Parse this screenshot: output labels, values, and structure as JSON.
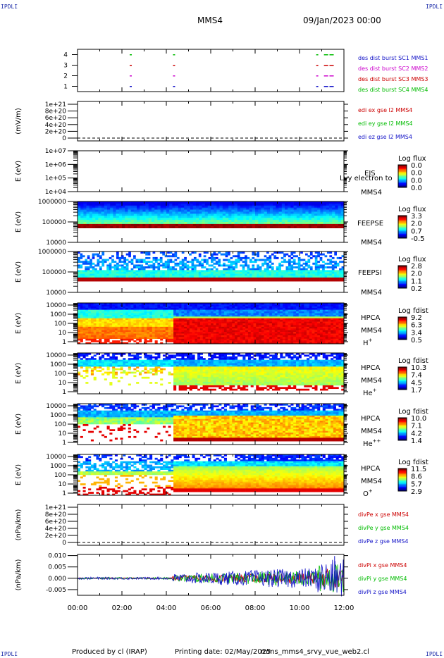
{
  "header": {
    "corner_label": "IPDLI",
    "spacecraft": "MMS4",
    "date": "09/Jan/2023 00:00"
  },
  "footer": {
    "produced": "Produced by cl (IRAP)",
    "printing": "Printing date: 02/May/2025",
    "script": "mms_mms4_srvy_vue_web2.cl"
  },
  "colors": {
    "blue": "#1414c8",
    "magenta": "#cc00cc",
    "red": "#cc0000",
    "green": "#00bb00",
    "black": "#000000"
  },
  "chart_data": [
    {
      "type": "scatter",
      "panel": "burst",
      "ylabel": "",
      "yticks": [
        "1",
        "2",
        "3",
        "4"
      ],
      "ylim": [
        0.5,
        4.5
      ],
      "xlim": [
        "00:00",
        "12:00"
      ],
      "series": [
        {
          "name": "des dist burst SC1 MMS1",
          "color": "#1414c8",
          "y": 1
        },
        {
          "name": "des dist burst SC2 MMS2",
          "color": "#cc00cc",
          "y": 2
        },
        {
          "name": "des dist burst SC3 MMS3",
          "color": "#cc0000",
          "y": 3
        },
        {
          "name": "des dist burst SC4 MMS4",
          "color": "#00bb00",
          "y": 4
        }
      ],
      "bursts_hours": [
        2.35,
        4.3,
        10.75,
        11.1,
        11.35
      ]
    },
    {
      "type": "line",
      "panel": "edi",
      "ylabel": "(mV/m)",
      "yticks": [
        "1e+21",
        "8e+20",
        "6e+20",
        "4e+20",
        "2e+20",
        "0"
      ],
      "series": [
        {
          "name": "edi ex gse l2 MMS4",
          "color": "#cc0000"
        },
        {
          "name": "edi ey gse l2 MMS4",
          "color": "#00bb00"
        },
        {
          "name": "edi ez gse l2 MMS4",
          "color": "#1414c8"
        }
      ]
    },
    {
      "type": "heatmap",
      "panel": "eis",
      "ylabel": "E (eV)",
      "yticks": [
        "1e+07",
        "1e+06",
        "1e+05",
        "1e+04"
      ],
      "right_labels": [
        "EIS",
        "MMS4"
      ],
      "overlay": "Lvy electron to",
      "colorbar": {
        "title": "Log flux",
        "ticks": [
          "0.0",
          "0.0",
          "0.0",
          "0.0"
        ]
      }
    },
    {
      "type": "heatmap",
      "panel": "feeps_e",
      "ylabel": "E (eV)",
      "yticks": [
        "1000000",
        "100000",
        "10000"
      ],
      "right_labels": [
        "FEEPSE",
        "MMS4"
      ],
      "colorbar": {
        "title": "Log flux",
        "ticks": [
          "3.3",
          "2.0",
          "0.7",
          "-0.5"
        ]
      }
    },
    {
      "type": "heatmap",
      "panel": "feeps_i",
      "ylabel": "E (eV)",
      "yticks": [
        "1000000",
        "100000",
        "10000"
      ],
      "right_labels": [
        "FEEPSI",
        "MMS4"
      ],
      "colorbar": {
        "title": "Log flux",
        "ticks": [
          "2.8",
          "2.0",
          "1.1",
          "0.2"
        ]
      }
    },
    {
      "type": "heatmap",
      "panel": "hpca_h",
      "ylabel": "E (eV)",
      "yticks": [
        "10000",
        "1000",
        "100",
        "10",
        "1"
      ],
      "right_labels": [
        "HPCA",
        "MMS4"
      ],
      "species": "H",
      "species_sup": "+",
      "colorbar": {
        "title": "Log fdist",
        "ticks": [
          "9.2",
          "6.3",
          "3.4",
          "0.5"
        ]
      }
    },
    {
      "type": "heatmap",
      "panel": "hpca_he",
      "ylabel": "E (eV)",
      "yticks": [
        "10000",
        "1000",
        "100",
        "10",
        "1"
      ],
      "right_labels": [
        "HPCA",
        "MMS4"
      ],
      "species": "He",
      "species_sup": "+",
      "colorbar": {
        "title": "Log fdist",
        "ticks": [
          "10.3",
          "7.4",
          "4.5",
          "1.7"
        ]
      }
    },
    {
      "type": "heatmap",
      "panel": "hpca_he2",
      "ylabel": "E (eV)",
      "yticks": [
        "10000",
        "1000",
        "100",
        "10",
        "1"
      ],
      "right_labels": [
        "HPCA",
        "MMS4"
      ],
      "species": "He",
      "species_sup": "++",
      "colorbar": {
        "title": "Log fdist",
        "ticks": [
          "10.0",
          "7.1",
          "4.2",
          "1.4"
        ]
      }
    },
    {
      "type": "heatmap",
      "panel": "hpca_o",
      "ylabel": "E (eV)",
      "yticks": [
        "10000",
        "1000",
        "100",
        "10",
        "1"
      ],
      "right_labels": [
        "HPCA",
        "MMS4"
      ],
      "species": "O",
      "species_sup": "+",
      "colorbar": {
        "title": "Log fdist",
        "ticks": [
          "11.5",
          "8.6",
          "5.7",
          "2.9"
        ]
      }
    },
    {
      "type": "line",
      "panel": "divpe",
      "ylabel": "(nPa/km)",
      "yticks": [
        "1e+21",
        "8e+20",
        "6e+20",
        "4e+20",
        "2e+20",
        "0"
      ],
      "series": [
        {
          "name": "divPe x gse MMS4",
          "color": "#cc0000"
        },
        {
          "name": "divPe y gse MMS4",
          "color": "#00bb00"
        },
        {
          "name": "divPe z gse MMS4",
          "color": "#1414c8"
        }
      ]
    },
    {
      "type": "line",
      "panel": "divpi",
      "ylabel": "(nPa/km)",
      "yticks": [
        "0.010",
        "0.005",
        "0.000",
        "-0.005"
      ],
      "ylim": [
        -0.0075,
        0.0105
      ],
      "series": [
        {
          "name": "divPi x gse MMS4",
          "color": "#cc0000"
        },
        {
          "name": "divPi y gse MMS4",
          "color": "#00bb00"
        },
        {
          "name": "divPi z gse MMS4",
          "color": "#1414c8"
        }
      ],
      "xticks": [
        "00:00",
        "02:00",
        "04:00",
        "06:00",
        "08:00",
        "10:00",
        "12:00"
      ]
    }
  ]
}
